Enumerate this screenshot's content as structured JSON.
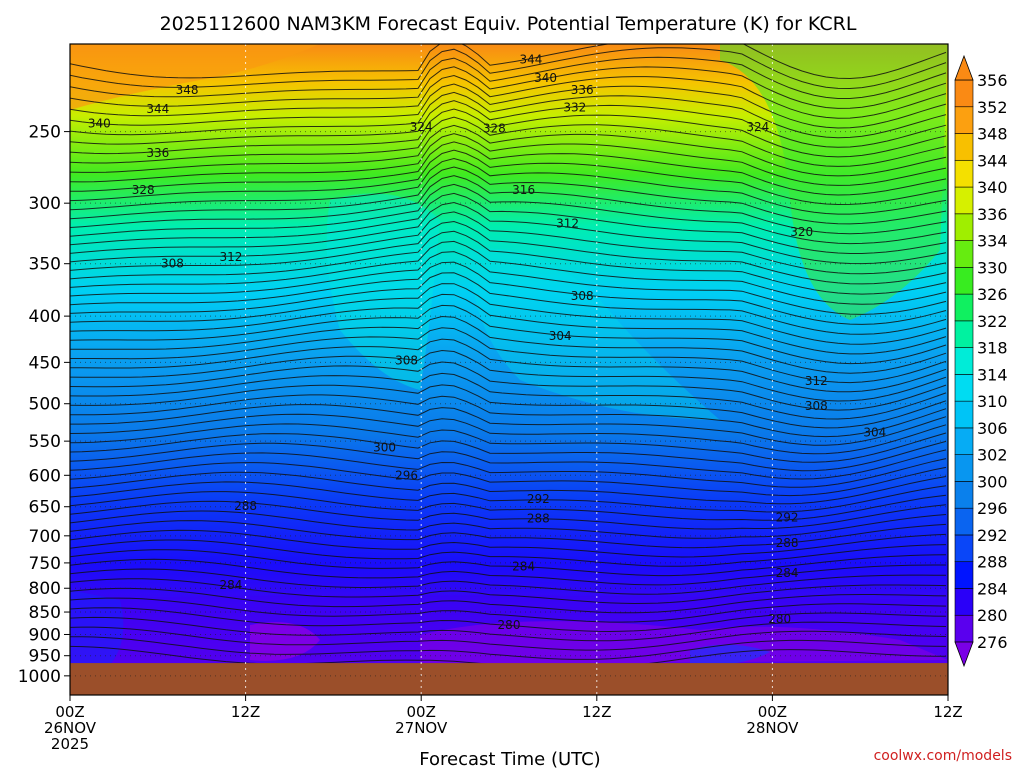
{
  "chart_data": {
    "type": "heatmap",
    "title": "2025112600 NAM3KM Forecast Equiv. Potential Temperature (K) for KCRL",
    "xlabel": "Forecast Time (UTC)",
    "ylabel": "",
    "x_ticks": [
      {
        "hours": 0,
        "line1": "00Z",
        "line2": "26NOV",
        "line3": "2025"
      },
      {
        "hours": 12,
        "line1": "12Z",
        "line2": "",
        "line3": ""
      },
      {
        "hours": 24,
        "line1": "00Z",
        "line2": "27NOV",
        "line3": ""
      },
      {
        "hours": 36,
        "line1": "12Z",
        "line2": "",
        "line3": ""
      },
      {
        "hours": 48,
        "line1": "00Z",
        "line2": "28NOV",
        "line3": ""
      },
      {
        "hours": 60,
        "line1": "12Z",
        "line2": "",
        "line3": ""
      }
    ],
    "x_range_hours": [
      0,
      60
    ],
    "y_ticks": [
      250,
      300,
      350,
      400,
      450,
      500,
      550,
      600,
      650,
      700,
      750,
      800,
      850,
      900,
      950,
      1000
    ],
    "y_range_hPa": [
      200,
      1050
    ],
    "surface_pressure_hPa": 968,
    "colorbar": {
      "levels": [
        276,
        280,
        284,
        288,
        292,
        296,
        300,
        302,
        306,
        310,
        314,
        318,
        322,
        326,
        330,
        334,
        336,
        340,
        344,
        348,
        352,
        356
      ],
      "colors": [
        "#7a00e6",
        "#5a00ee",
        "#2a00f8",
        "#0014ff",
        "#0a46f8",
        "#0a64f0",
        "#0a80ec",
        "#0896f0",
        "#06acf4",
        "#00c4f6",
        "#00dcf2",
        "#00ecd8",
        "#00f2a0",
        "#10f060",
        "#38ec20",
        "#66ec10",
        "#a0ee00",
        "#d6f000",
        "#f4e000",
        "#f8c000",
        "#fca010",
        "#fa8a14"
      ]
    },
    "contour_labels": [
      {
        "text": "344",
        "hours": 31.5,
        "hPa": 208
      },
      {
        "text": "340",
        "hours": 32.5,
        "hPa": 218
      },
      {
        "text": "336",
        "hours": 35,
        "hPa": 225
      },
      {
        "text": "332",
        "hours": 34.5,
        "hPa": 235
      },
      {
        "text": "348",
        "hours": 8,
        "hPa": 225
      },
      {
        "text": "344",
        "hours": 6,
        "hPa": 236
      },
      {
        "text": "340",
        "hours": 2,
        "hPa": 245
      },
      {
        "text": "336",
        "hours": 6,
        "hPa": 264
      },
      {
        "text": "324",
        "hours": 24,
        "hPa": 247
      },
      {
        "text": "328",
        "hours": 29,
        "hPa": 248
      },
      {
        "text": "324",
        "hours": 47,
        "hPa": 247
      },
      {
        "text": "328",
        "hours": 5,
        "hPa": 290
      },
      {
        "text": "316",
        "hours": 31,
        "hPa": 290
      },
      {
        "text": "312",
        "hours": 34,
        "hPa": 316
      },
      {
        "text": "320",
        "hours": 50,
        "hPa": 323
      },
      {
        "text": "312",
        "hours": 11,
        "hPa": 344
      },
      {
        "text": "308",
        "hours": 7,
        "hPa": 350
      },
      {
        "text": "308",
        "hours": 35,
        "hPa": 380
      },
      {
        "text": "304",
        "hours": 33.5,
        "hPa": 421
      },
      {
        "text": "308",
        "hours": 23,
        "hPa": 448
      },
      {
        "text": "312",
        "hours": 51,
        "hPa": 472
      },
      {
        "text": "308",
        "hours": 51,
        "hPa": 503
      },
      {
        "text": "304",
        "hours": 55,
        "hPa": 538
      },
      {
        "text": "300",
        "hours": 21.5,
        "hPa": 559
      },
      {
        "text": "296",
        "hours": 23,
        "hPa": 600
      },
      {
        "text": "292",
        "hours": 32,
        "hPa": 637
      },
      {
        "text": "288",
        "hours": 12,
        "hPa": 649
      },
      {
        "text": "288",
        "hours": 32,
        "hPa": 670
      },
      {
        "text": "292",
        "hours": 49,
        "hPa": 668
      },
      {
        "text": "288",
        "hours": 49,
        "hPa": 713
      },
      {
        "text": "284",
        "hours": 31,
        "hPa": 757
      },
      {
        "text": "284",
        "hours": 11,
        "hPa": 793
      },
      {
        "text": "284",
        "hours": 49,
        "hPa": 770
      },
      {
        "text": "280",
        "hours": 30,
        "hPa": 878
      },
      {
        "text": "280",
        "hours": 48.5,
        "hPa": 865
      }
    ],
    "watermark": "coolwx.com/models"
  }
}
